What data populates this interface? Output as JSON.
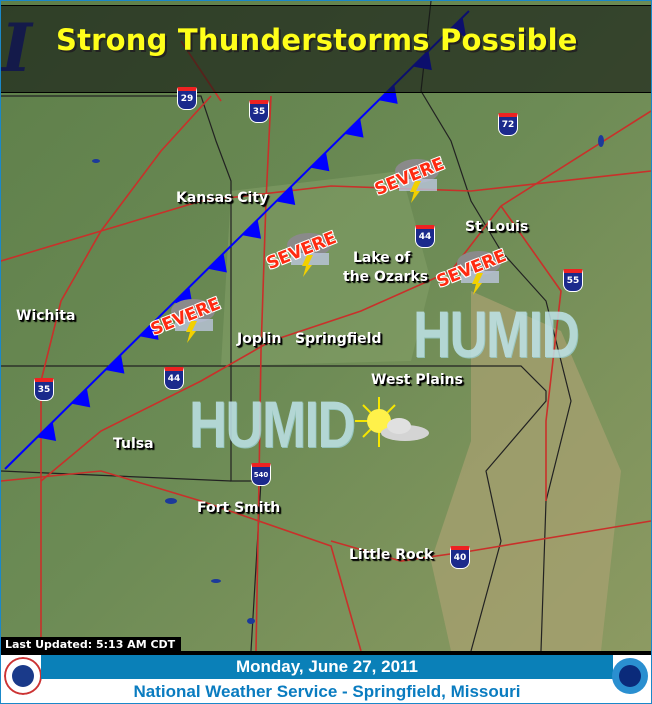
{
  "header": {
    "title": "Strong Thunderstorms Possible"
  },
  "cities": [
    {
      "name": "Kansas City"
    },
    {
      "name": "Wichita"
    },
    {
      "name": "Tulsa"
    },
    {
      "name": "Joplin"
    },
    {
      "name": "Springfield"
    },
    {
      "name": "Lake of"
    },
    {
      "name": "the Ozarks"
    },
    {
      "name": "St Louis"
    },
    {
      "name": "West Plains"
    },
    {
      "name": "Fort Smith"
    },
    {
      "name": "Little Rock"
    }
  ],
  "interstates": [
    "29",
    "35",
    "72",
    "44",
    "55",
    "35",
    "44",
    "540",
    "40"
  ],
  "hazards": {
    "severe_label": "SEVERE",
    "humid_label": "HUMID"
  },
  "front": {
    "type": "cold-front",
    "color": "#0000ff"
  },
  "weather_icons": [
    "severe-thunderstorm-icon",
    "partly-sunny-icon"
  ],
  "footer": {
    "last_updated": "Last Updated:  5:13 AM CDT",
    "date": "Monday, June 27, 2011",
    "office": "National Weather Service - Springfield, Missouri"
  },
  "colors": {
    "title": "#ffff1a",
    "severe": "#ff2a10",
    "date_bar": "#0a80b8",
    "office_text": "#0a7cc0"
  }
}
